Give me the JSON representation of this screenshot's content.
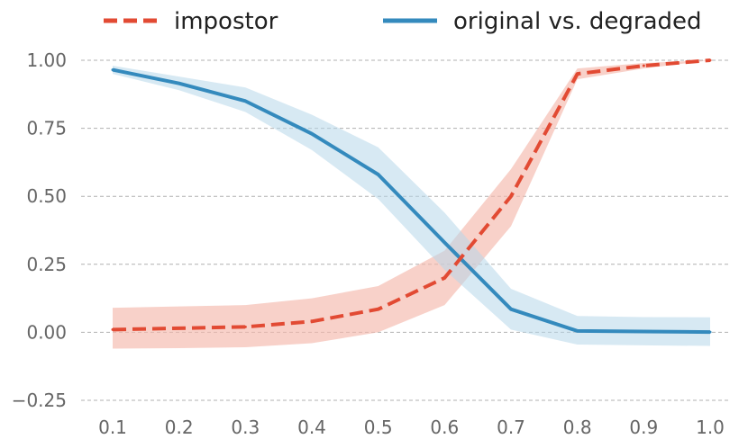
{
  "chart_data": {
    "type": "line",
    "x": [
      0.1,
      0.2,
      0.3,
      0.4,
      0.5,
      0.6,
      0.7,
      0.8,
      0.9,
      1.0
    ],
    "x_tick_labels": [
      "0.1",
      "0.2",
      "0.3",
      "0.4",
      "0.5",
      "0.6",
      "0.7",
      "0.8",
      "0.9",
      "1.0"
    ],
    "y_ticks": [
      -0.25,
      0.0,
      0.25,
      0.5,
      0.75,
      1.0
    ],
    "y_tick_labels": [
      "−0.25",
      "0.00",
      "0.25",
      "0.50",
      "0.75",
      "1.00"
    ],
    "xlim": [
      0.1,
      1.0
    ],
    "ylim": [
      -0.28,
      1.06
    ],
    "grid": "horizontal dashed",
    "legend_placement": "top",
    "series": [
      {
        "name": "impostor",
        "style": "dashed",
        "color": "#e24a33",
        "band_color": "#f4b8ac",
        "values": [
          0.01,
          0.015,
          0.02,
          0.04,
          0.085,
          0.2,
          0.5,
          0.95,
          0.98,
          1.0
        ],
        "lower": [
          -0.06,
          -0.058,
          -0.055,
          -0.04,
          0.0,
          0.1,
          0.39,
          0.93,
          0.97,
          1.0
        ],
        "upper": [
          0.09,
          0.095,
          0.1,
          0.125,
          0.17,
          0.3,
          0.6,
          0.97,
          0.99,
          1.0
        ]
      },
      {
        "name": "original vs. degraded",
        "style": "solid",
        "color": "#348abd",
        "band_color": "#b7d7ea",
        "values": [
          0.965,
          0.915,
          0.85,
          0.73,
          0.58,
          0.33,
          0.085,
          0.005,
          0.003,
          0.001
        ],
        "lower": [
          0.95,
          0.89,
          0.81,
          0.67,
          0.49,
          0.23,
          0.01,
          -0.045,
          -0.048,
          -0.05
        ],
        "upper": [
          0.98,
          0.94,
          0.9,
          0.8,
          0.68,
          0.44,
          0.16,
          0.06,
          0.056,
          0.055
        ]
      }
    ]
  }
}
